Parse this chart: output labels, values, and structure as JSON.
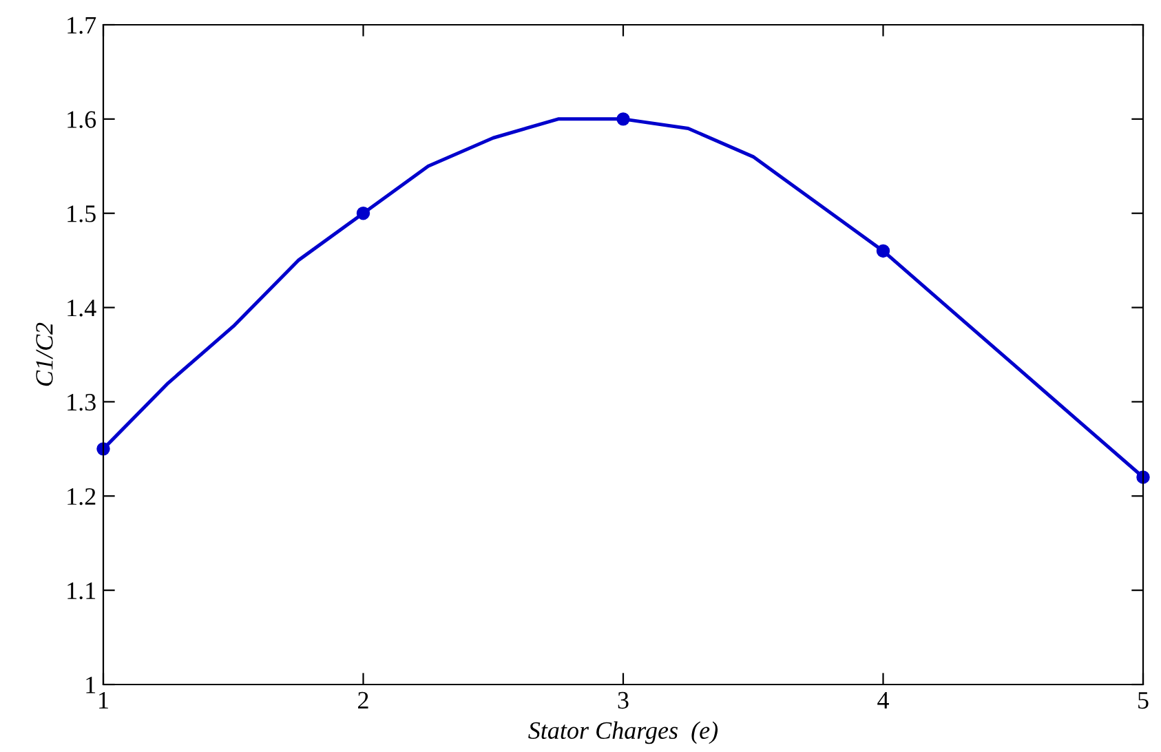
{
  "chart_data": {
    "type": "line",
    "xlabel": "Stator Charges  (e)",
    "ylabel": "C1/C2",
    "x": [
      1,
      1.25,
      1.5,
      1.75,
      2,
      2.25,
      2.5,
      2.75,
      3,
      3.25,
      3.5,
      3.75,
      4,
      4.25,
      4.5,
      4.75,
      5
    ],
    "series": [
      {
        "color": "#0000cc",
        "values": [
          1.25,
          1.32,
          1.38,
          1.45,
          1.5,
          1.55,
          1.58,
          1.6,
          1.6,
          1.59,
          1.56,
          1.51,
          1.46,
          1.4,
          1.34,
          1.28,
          1.22
        ]
      },
      {
        "type": "scatter",
        "marker": "circle",
        "color": "#0000cc",
        "x": [
          1,
          2,
          3,
          4,
          5
        ],
        "values": [
          1.25,
          1.5,
          1.6,
          1.46,
          1.22
        ]
      }
    ],
    "xlim": [
      1,
      5
    ],
    "xticks": [
      1,
      2,
      3,
      4,
      5
    ],
    "ylim": [
      1,
      1.7
    ],
    "yticks": [
      1,
      1.1,
      1.2,
      1.3,
      1.4,
      1.5,
      1.6,
      1.7
    ],
    "line_style": "solid",
    "grid": false,
    "legend": false
  }
}
